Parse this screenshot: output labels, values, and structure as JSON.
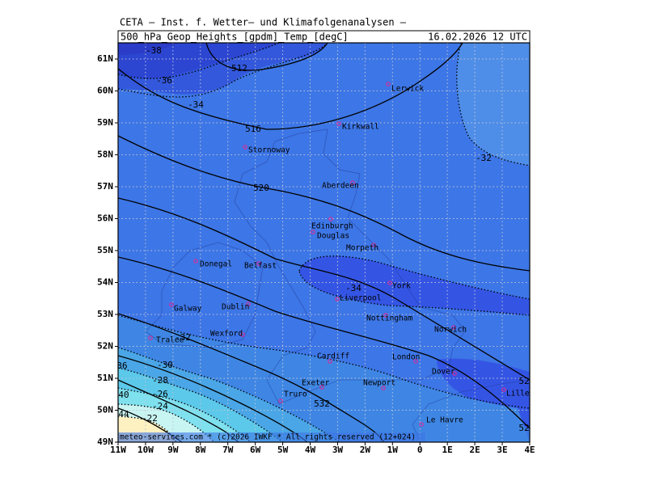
{
  "header": {
    "title": "CETA – Inst. f. Wetter– und Klimafolgenanalysen –",
    "field": "500_hPa_Geop_Heights_[gpdm]_Temp_[degC]",
    "valid_time": "16.02.2026 12 UTC"
  },
  "x_axis_labels": [
    "11W",
    "10W",
    "9W",
    "8W",
    "7W",
    "6W",
    "5W",
    "4W",
    "3W",
    "2W",
    "1W",
    "0",
    "1E",
    "2E",
    "3E",
    "4E"
  ],
  "y_axis_labels": [
    "49N",
    "50N",
    "51N",
    "52N",
    "53N",
    "54N",
    "55N",
    "56N",
    "57N",
    "58N",
    "59N",
    "60N",
    "61N"
  ],
  "cities": [
    "Lerwick",
    "Kirkwall",
    "Stornoway",
    "Aberdeen",
    "Edinburgh",
    "Douglas",
    "Morpeth",
    "Donegal",
    "Belfast",
    "York",
    "Liverpool",
    "Galway",
    "Dublin",
    "Nottingham",
    "Norwich",
    "Wexford",
    "Tralee",
    "Cardiff",
    "London",
    "Dover",
    "Exeter",
    "Newport",
    "Lille",
    "Truro",
    "Le Havre"
  ],
  "contour_labels": [
    "-38",
    "512",
    "-36",
    "-34",
    "516",
    "-32",
    "520",
    "-34",
    "-32",
    "36",
    "-30",
    "52",
    "-28",
    "40",
    "-26",
    "-24",
    "532",
    "44",
    "-22",
    "52"
  ],
  "footer": "meteo-services.com * (c)2026 IWKF * All rights reserved (12+024)"
}
